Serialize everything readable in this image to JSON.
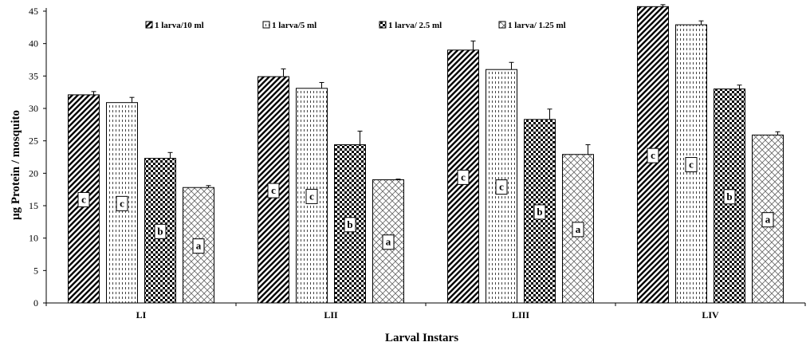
{
  "chart_data": {
    "type": "bar",
    "title": "",
    "xlabel": "Larval Instars",
    "ylabel": "µg Protein / mosquito",
    "ylim": [
      0,
      45
    ],
    "yticks": [
      0,
      5,
      10,
      15,
      20,
      25,
      30,
      35,
      40,
      45
    ],
    "categories": [
      "LI",
      "LII",
      "LIII",
      "LIV"
    ],
    "legend_position": "top",
    "grid": false,
    "series": [
      {
        "name": "1 larva/10 ml",
        "pattern": "diagonal-stripes",
        "values": [
          32.1,
          34.9,
          39.0,
          45.7
        ],
        "errors": [
          0.5,
          1.2,
          1.4,
          0.3
        ],
        "letters": [
          "c",
          "c",
          "c",
          "c"
        ]
      },
      {
        "name": "1 larva/5 ml",
        "pattern": "vertical-dashes",
        "values": [
          30.9,
          33.1,
          36.0,
          42.9
        ],
        "errors": [
          0.8,
          0.9,
          1.1,
          0.6
        ],
        "letters": [
          "c",
          "c",
          "c",
          "c"
        ]
      },
      {
        "name": "1 larva/ 2.5 ml",
        "pattern": "checkerboard",
        "values": [
          22.3,
          24.4,
          28.3,
          33.0
        ],
        "errors": [
          0.9,
          2.1,
          1.6,
          0.6
        ],
        "letters": [
          "b",
          "b",
          "b",
          "b"
        ]
      },
      {
        "name": "1 larva/ 1.25 ml",
        "pattern": "diamond-lattice",
        "values": [
          17.8,
          19.0,
          22.9,
          25.9
        ],
        "errors": [
          0.3,
          0.1,
          1.5,
          0.5
        ],
        "letters": [
          "a",
          "a",
          "a",
          "a"
        ]
      }
    ]
  }
}
